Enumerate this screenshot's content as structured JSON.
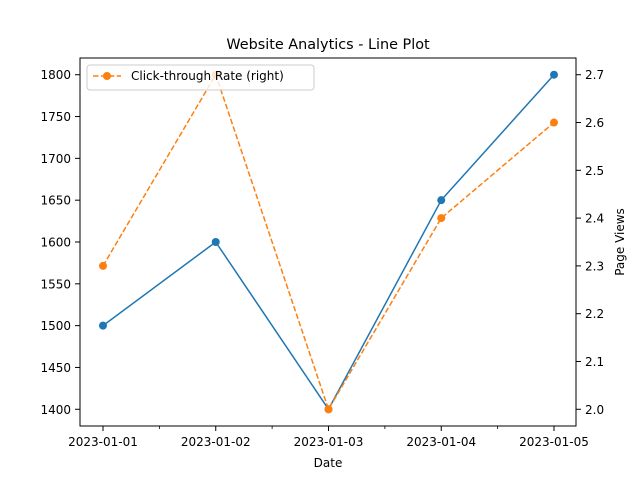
{
  "chart_data": {
    "type": "line",
    "title": "Website Analytics - Line Plot",
    "xlabel": "Date",
    "ylabel_left": "",
    "ylabel_right": "Page Views",
    "x": [
      "2023-01-01",
      "2023-01-02",
      "2023-01-03",
      "2023-01-04",
      "2023-01-05"
    ],
    "y_left_ticks": [
      1400,
      1450,
      1500,
      1550,
      1600,
      1650,
      1700,
      1750,
      1800
    ],
    "y_right_ticks": [
      "2.0",
      "2.1",
      "2.2",
      "2.3",
      "2.4",
      "2.5",
      "2.6",
      "2.7"
    ],
    "ylim_left": [
      1380,
      1820
    ],
    "ylim_right": [
      1.965,
      2.735
    ],
    "grid": false,
    "legend_position": "upper-left",
    "series": [
      {
        "values": [
          1500,
          1600,
          1400,
          1650,
          1800
        ],
        "axis": "left",
        "color": "#1f77b4",
        "style": "solid",
        "marker": "circle"
      },
      {
        "name": "Click-through Rate (right)",
        "values": [
          2.3,
          2.7,
          2.0,
          2.4,
          2.6
        ],
        "axis": "right",
        "color": "#ff7f0e",
        "style": "dashed",
        "marker": "circle"
      }
    ]
  }
}
